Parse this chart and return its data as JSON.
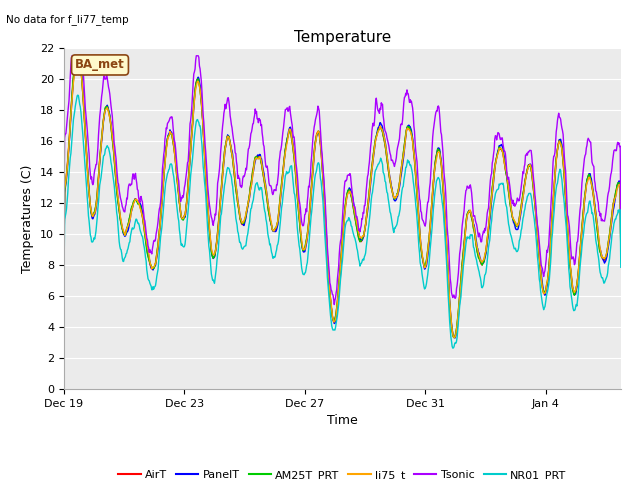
{
  "title": "Temperature",
  "xlabel": "Time",
  "ylabel": "Temperatures (C)",
  "top_left_note": "No data for f_li77_temp",
  "ba_met_label": "BA_met",
  "ylim": [
    0,
    22
  ],
  "yticks": [
    0,
    2,
    4,
    6,
    8,
    10,
    12,
    14,
    16,
    18,
    20,
    22
  ],
  "xtick_labels": [
    "Dec 19",
    "Dec 23",
    "Dec 27",
    "Dec 31",
    "Jan 4"
  ],
  "series": {
    "AirT": {
      "color": "#ff0000",
      "lw": 1.0
    },
    "PanelT": {
      "color": "#0000ff",
      "lw": 1.0
    },
    "AM25T_PRT": {
      "color": "#00cc00",
      "lw": 1.0
    },
    "li75_t": {
      "color": "#ffa500",
      "lw": 1.0
    },
    "Tsonic": {
      "color": "#aa00ff",
      "lw": 1.0
    },
    "NR01_PRT": {
      "color": "#00cccc",
      "lw": 1.0
    }
  },
  "bg_color": "#ffffff",
  "plot_bg": "#ebebeb",
  "grid_color": "#ffffff",
  "title_fontsize": 11,
  "label_fontsize": 9,
  "tick_fontsize": 8,
  "legend_fontsize": 8
}
